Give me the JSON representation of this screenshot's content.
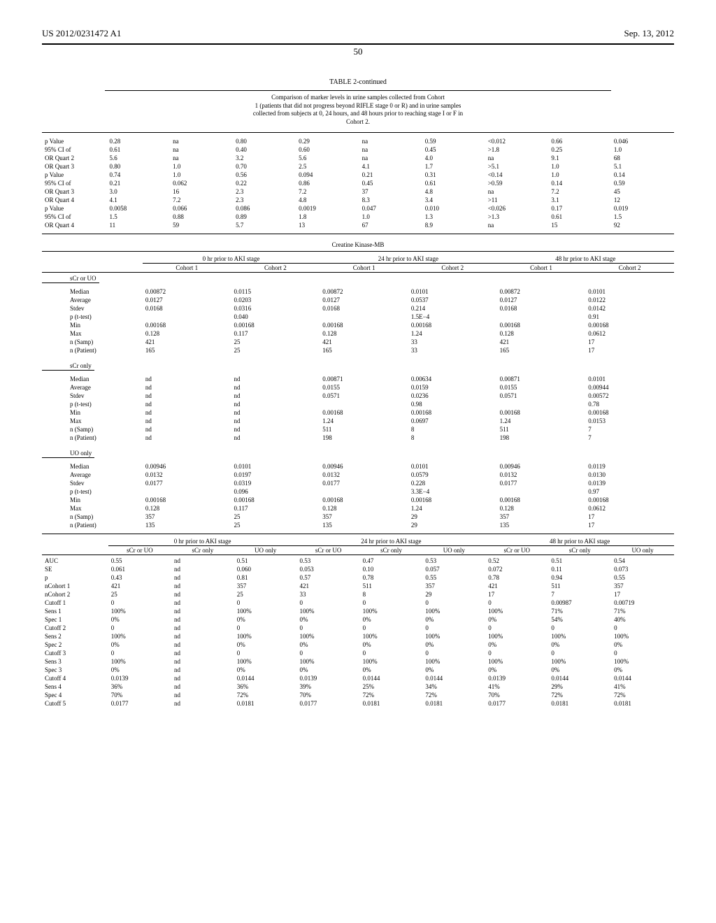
{
  "header": {
    "left": "US 2012/0231472 A1",
    "right": "Sep. 13, 2012"
  },
  "page_number": "50",
  "table_title": "TABLE 2-continued",
  "caption_lines": [
    "Comparison of marker levels in urine samples collected from Cohort",
    "1 (patients that did not progress beyond RIFLE stage 0 or R) and in urine samples",
    "collected from subjects at 0, 24 hours, and 48 hours prior to reaching stage I or F in",
    "Cohort 2."
  ],
  "top_block": {
    "row_labels": [
      "p Value",
      "95% CI of",
      "OR Quart 2",
      "OR Quart 3",
      "p Value",
      "95% CI of",
      "OR Quart 3",
      "OR Quart 4",
      "p Value",
      "95% CI of",
      "OR Quart 4"
    ],
    "rows": [
      [
        "0.28",
        "na",
        "0.80",
        "0.29",
        "na",
        "0.59",
        "<0.012",
        "0.66",
        "0.046"
      ],
      [
        "0.61",
        "na",
        "0.40",
        "0.60",
        "na",
        "0.45",
        ">1.8",
        "0.25",
        "1.0"
      ],
      [
        "5.6",
        "na",
        "3.2",
        "5.6",
        "na",
        "4.0",
        "na",
        "9.1",
        "68"
      ],
      [
        "0.80",
        "1.0",
        "0.70",
        "2.5",
        "4.1",
        "1.7",
        ">5.1",
        "1.0",
        "5.1"
      ],
      [
        "0.74",
        "1.0",
        "0.56",
        "0.094",
        "0.21",
        "0.31",
        "<0.14",
        "1.0",
        "0.14"
      ],
      [
        "0.21",
        "0.062",
        "0.22",
        "0.86",
        "0.45",
        "0.61",
        ">0.59",
        "0.14",
        "0.59"
      ],
      [
        "3.0",
        "16",
        "2.3",
        "7.2",
        "37",
        "4.8",
        "na",
        "7.2",
        "45"
      ],
      [
        "4.1",
        "7.2",
        "2.3",
        "4.8",
        "8.3",
        "3.4",
        ">11",
        "3.1",
        "12"
      ],
      [
        "0.0058",
        "0.066",
        "0.086",
        "0.0019",
        "0.047",
        "0.010",
        "<0.026",
        "0.17",
        "0.019"
      ],
      [
        "1.5",
        "0.88",
        "0.89",
        "1.8",
        "1.0",
        "1.3",
        ">1.3",
        "0.61",
        "1.5"
      ],
      [
        "11",
        "59",
        "5.7",
        "13",
        "67",
        "8.9",
        "na",
        "15",
        "92"
      ]
    ]
  },
  "ck_title": "Creatine Kinase-MB",
  "ck_time_headers": [
    "0 hr prior to AKI stage",
    "24 hr prior to AKI stage",
    "48 hr prior to AKI stage"
  ],
  "ck_cohort_headers": [
    "Cohort 1",
    "Cohort 2",
    "Cohort 1",
    "Cohort 2",
    "Cohort 1",
    "Cohort 2"
  ],
  "ck_groups": [
    {
      "name": "sCr or UO",
      "labels": [
        "Median",
        "Average",
        "Stdev",
        "p (t-test)",
        "Min",
        "Max",
        "n (Samp)",
        "n (Patient)"
      ],
      "rows": [
        [
          "0.00872",
          "0.0115",
          "0.00872",
          "0.0101",
          "0.00872",
          "0.0101"
        ],
        [
          "0.0127",
          "0.0203",
          "0.0127",
          "0.0537",
          "0.0127",
          "0.0122"
        ],
        [
          "0.0168",
          "0.0316",
          "0.0168",
          "0.214",
          "0.0168",
          "0.0142"
        ],
        [
          "",
          "0.040",
          "",
          "1.5E−4",
          "",
          "0.91"
        ],
        [
          "0.00168",
          "0.00168",
          "0.00168",
          "0.00168",
          "0.00168",
          "0.00168"
        ],
        [
          "0.128",
          "0.117",
          "0.128",
          "1.24",
          "0.128",
          "0.0612"
        ],
        [
          "421",
          "25",
          "421",
          "33",
          "421",
          "17"
        ],
        [
          "165",
          "25",
          "165",
          "33",
          "165",
          "17"
        ]
      ]
    },
    {
      "name": "sCr only",
      "labels": [
        "Median",
        "Average",
        "Stdev",
        "p (t-test)",
        "Min",
        "Max",
        "n (Samp)",
        "n (Patient)"
      ],
      "rows": [
        [
          "nd",
          "nd",
          "0.00871",
          "0.00634",
          "0.00871",
          "0.0101"
        ],
        [
          "nd",
          "nd",
          "0.0155",
          "0.0159",
          "0.0155",
          "0.00944"
        ],
        [
          "nd",
          "nd",
          "0.0571",
          "0.0236",
          "0.0571",
          "0.00572"
        ],
        [
          "nd",
          "nd",
          "",
          "0.98",
          "",
          "0.78"
        ],
        [
          "nd",
          "nd",
          "0.00168",
          "0.00168",
          "0.00168",
          "0.00168"
        ],
        [
          "nd",
          "nd",
          "1.24",
          "0.0697",
          "1.24",
          "0.0153"
        ],
        [
          "nd",
          "nd",
          "511",
          "8",
          "511",
          "7"
        ],
        [
          "nd",
          "nd",
          "198",
          "8",
          "198",
          "7"
        ]
      ]
    },
    {
      "name": "UO only",
      "labels": [
        "Median",
        "Average",
        "Stdev",
        "p (t-test)",
        "Min",
        "Max",
        "n (Samp)",
        "n (Patient)"
      ],
      "rows": [
        [
          "0.00946",
          "0.0101",
          "0.00946",
          "0.0101",
          "0.00946",
          "0.0119"
        ],
        [
          "0.0132",
          "0.0197",
          "0.0132",
          "0.0579",
          "0.0132",
          "0.0130"
        ],
        [
          "0.0177",
          "0.0319",
          "0.0177",
          "0.228",
          "0.0177",
          "0.0139"
        ],
        [
          "",
          "0.096",
          "",
          "3.3E−4",
          "",
          "0.97"
        ],
        [
          "0.00168",
          "0.00168",
          "0.00168",
          "0.00168",
          "0.00168",
          "0.00168"
        ],
        [
          "0.128",
          "0.117",
          "0.128",
          "1.24",
          "0.128",
          "0.0612"
        ],
        [
          "357",
          "25",
          "357",
          "29",
          "357",
          "17"
        ],
        [
          "135",
          "25",
          "135",
          "29",
          "135",
          "17"
        ]
      ]
    }
  ],
  "bottom_time_headers": [
    "0 hr prior to AKI stage",
    "24 hr prior to AKI stage",
    "48 hr prior to AKI stage"
  ],
  "bottom_col_headers": [
    "sCr or UO",
    "sCr only",
    "UO only",
    "sCr or UO",
    "sCr only",
    "UO only",
    "sCr or UO",
    "sCr only",
    "UO only"
  ],
  "bottom_block": {
    "row_labels": [
      "AUC",
      "SE",
      "p",
      "nCohort 1",
      "nCohort 2",
      "Cutoff 1",
      "Sens 1",
      "Spec 1",
      "Cutoff 2",
      "Sens 2",
      "Spec 2",
      "Cutoff 3",
      "Sens 3",
      "Spec 3",
      "Cutoff 4",
      "Sens 4",
      "Spec 4",
      "Cutoff 5"
    ],
    "rows": [
      [
        "0.55",
        "nd",
        "0.51",
        "0.53",
        "0.47",
        "0.53",
        "0.52",
        "0.51",
        "0.54"
      ],
      [
        "0.061",
        "nd",
        "0.060",
        "0.053",
        "0.10",
        "0.057",
        "0.072",
        "0.11",
        "0.073"
      ],
      [
        "0.43",
        "nd",
        "0.81",
        "0.57",
        "0.78",
        "0.55",
        "0.78",
        "0.94",
        "0.55"
      ],
      [
        "421",
        "nd",
        "357",
        "421",
        "511",
        "357",
        "421",
        "511",
        "357"
      ],
      [
        "25",
        "nd",
        "25",
        "33",
        "8",
        "29",
        "17",
        "7",
        "17"
      ],
      [
        "0",
        "nd",
        "0",
        "0",
        "0",
        "0",
        "0",
        "0.00987",
        "0.00719"
      ],
      [
        "100%",
        "nd",
        "100%",
        "100%",
        "100%",
        "100%",
        "100%",
        "71%",
        "71%"
      ],
      [
        "0%",
        "nd",
        "0%",
        "0%",
        "0%",
        "0%",
        "0%",
        "54%",
        "40%"
      ],
      [
        "0",
        "nd",
        "0",
        "0",
        "0",
        "0",
        "0",
        "0",
        "0"
      ],
      [
        "100%",
        "nd",
        "100%",
        "100%",
        "100%",
        "100%",
        "100%",
        "100%",
        "100%"
      ],
      [
        "0%",
        "nd",
        "0%",
        "0%",
        "0%",
        "0%",
        "0%",
        "0%",
        "0%"
      ],
      [
        "0",
        "nd",
        "0",
        "0",
        "0",
        "0",
        "0",
        "0",
        "0"
      ],
      [
        "100%",
        "nd",
        "100%",
        "100%",
        "100%",
        "100%",
        "100%",
        "100%",
        "100%"
      ],
      [
        "0%",
        "nd",
        "0%",
        "0%",
        "0%",
        "0%",
        "0%",
        "0%",
        "0%"
      ],
      [
        "0.0139",
        "nd",
        "0.0144",
        "0.0139",
        "0.0144",
        "0.0144",
        "0.0139",
        "0.0144",
        "0.0144"
      ],
      [
        "36%",
        "nd",
        "36%",
        "39%",
        "25%",
        "34%",
        "41%",
        "29%",
        "41%"
      ],
      [
        "70%",
        "nd",
        "72%",
        "70%",
        "72%",
        "72%",
        "70%",
        "72%",
        "72%"
      ],
      [
        "0.0177",
        "nd",
        "0.0181",
        "0.0177",
        "0.0181",
        "0.0181",
        "0.0177",
        "0.0181",
        "0.0181"
      ]
    ]
  }
}
